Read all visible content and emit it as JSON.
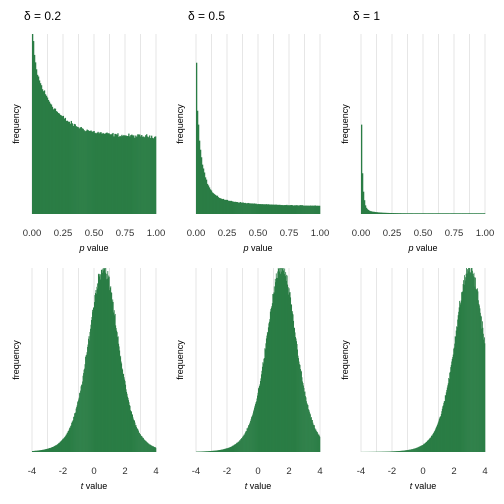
{
  "colors": {
    "bars": "#2a7d45",
    "grid": "#e6e6e6",
    "text": "#303030"
  },
  "chart_data": [
    {
      "type": "bar",
      "title": "δ = 0.2",
      "xlabel_italic": "p",
      "xlabel_rest": " value",
      "ylabel": "frequency",
      "xlim": [
        0,
        1
      ],
      "ylim": [
        0,
        1
      ],
      "xticks": [
        0,
        0.25,
        0.5,
        0.75,
        1
      ],
      "xtick_labels": [
        "0.00",
        "0.25",
        "0.50",
        "0.75",
        "1.00"
      ],
      "grid": true,
      "curve": {
        "kind": "p",
        "delta": 0.2
      }
    },
    {
      "type": "bar",
      "title": "δ = 0.5",
      "xlabel_italic": "p",
      "xlabel_rest": " value",
      "ylabel": "frequency",
      "xlim": [
        0,
        1
      ],
      "ylim": [
        0,
        1
      ],
      "xticks": [
        0,
        0.25,
        0.5,
        0.75,
        1
      ],
      "xtick_labels": [
        "0.00",
        "0.25",
        "0.50",
        "0.75",
        "1.00"
      ],
      "grid": true,
      "curve": {
        "kind": "p",
        "delta": 0.5
      }
    },
    {
      "type": "bar",
      "title": "δ = 1",
      "xlabel_italic": "p",
      "xlabel_rest": " value",
      "ylabel": "frequency",
      "xlim": [
        0,
        1
      ],
      "ylim": [
        0,
        1
      ],
      "xticks": [
        0,
        0.25,
        0.5,
        0.75,
        1
      ],
      "xtick_labels": [
        "0.00",
        "0.25",
        "0.50",
        "0.75",
        "1.00"
      ],
      "grid": true,
      "curve": {
        "kind": "p",
        "delta": 1
      }
    },
    {
      "type": "bar",
      "title": "",
      "xlabel_italic": "t",
      "xlabel_rest": " value",
      "ylabel": "frequency",
      "xlim": [
        -4,
        4
      ],
      "ylim": [
        0,
        1
      ],
      "xticks": [
        -4,
        -2,
        0,
        2,
        4
      ],
      "xtick_labels": [
        "-4",
        "-2",
        "0",
        "2",
        "4"
      ],
      "grid": true,
      "curve": {
        "kind": "t",
        "mean": 0.6,
        "sd": 1.0
      }
    },
    {
      "type": "bar",
      "title": "",
      "xlabel_italic": "t",
      "xlabel_rest": " value",
      "ylabel": "frequency",
      "xlim": [
        -4,
        4
      ],
      "ylim": [
        0,
        1
      ],
      "xticks": [
        -4,
        -2,
        0,
        2,
        4
      ],
      "xtick_labels": [
        "-4",
        "-2",
        "0",
        "2",
        "4"
      ],
      "grid": true,
      "curve": {
        "kind": "t",
        "mean": 1.5,
        "sd": 1.0
      }
    },
    {
      "type": "bar",
      "title": "",
      "xlabel_italic": "t",
      "xlabel_rest": " value",
      "ylabel": "frequency",
      "xlim": [
        -4,
        4
      ],
      "ylim": [
        0,
        1
      ],
      "xticks": [
        -4,
        -2,
        0,
        2,
        4
      ],
      "xtick_labels": [
        "-4",
        "-2",
        "0",
        "2",
        "4"
      ],
      "grid": true,
      "curve": {
        "kind": "t",
        "mean": 3.0,
        "sd": 1.0
      }
    }
  ]
}
